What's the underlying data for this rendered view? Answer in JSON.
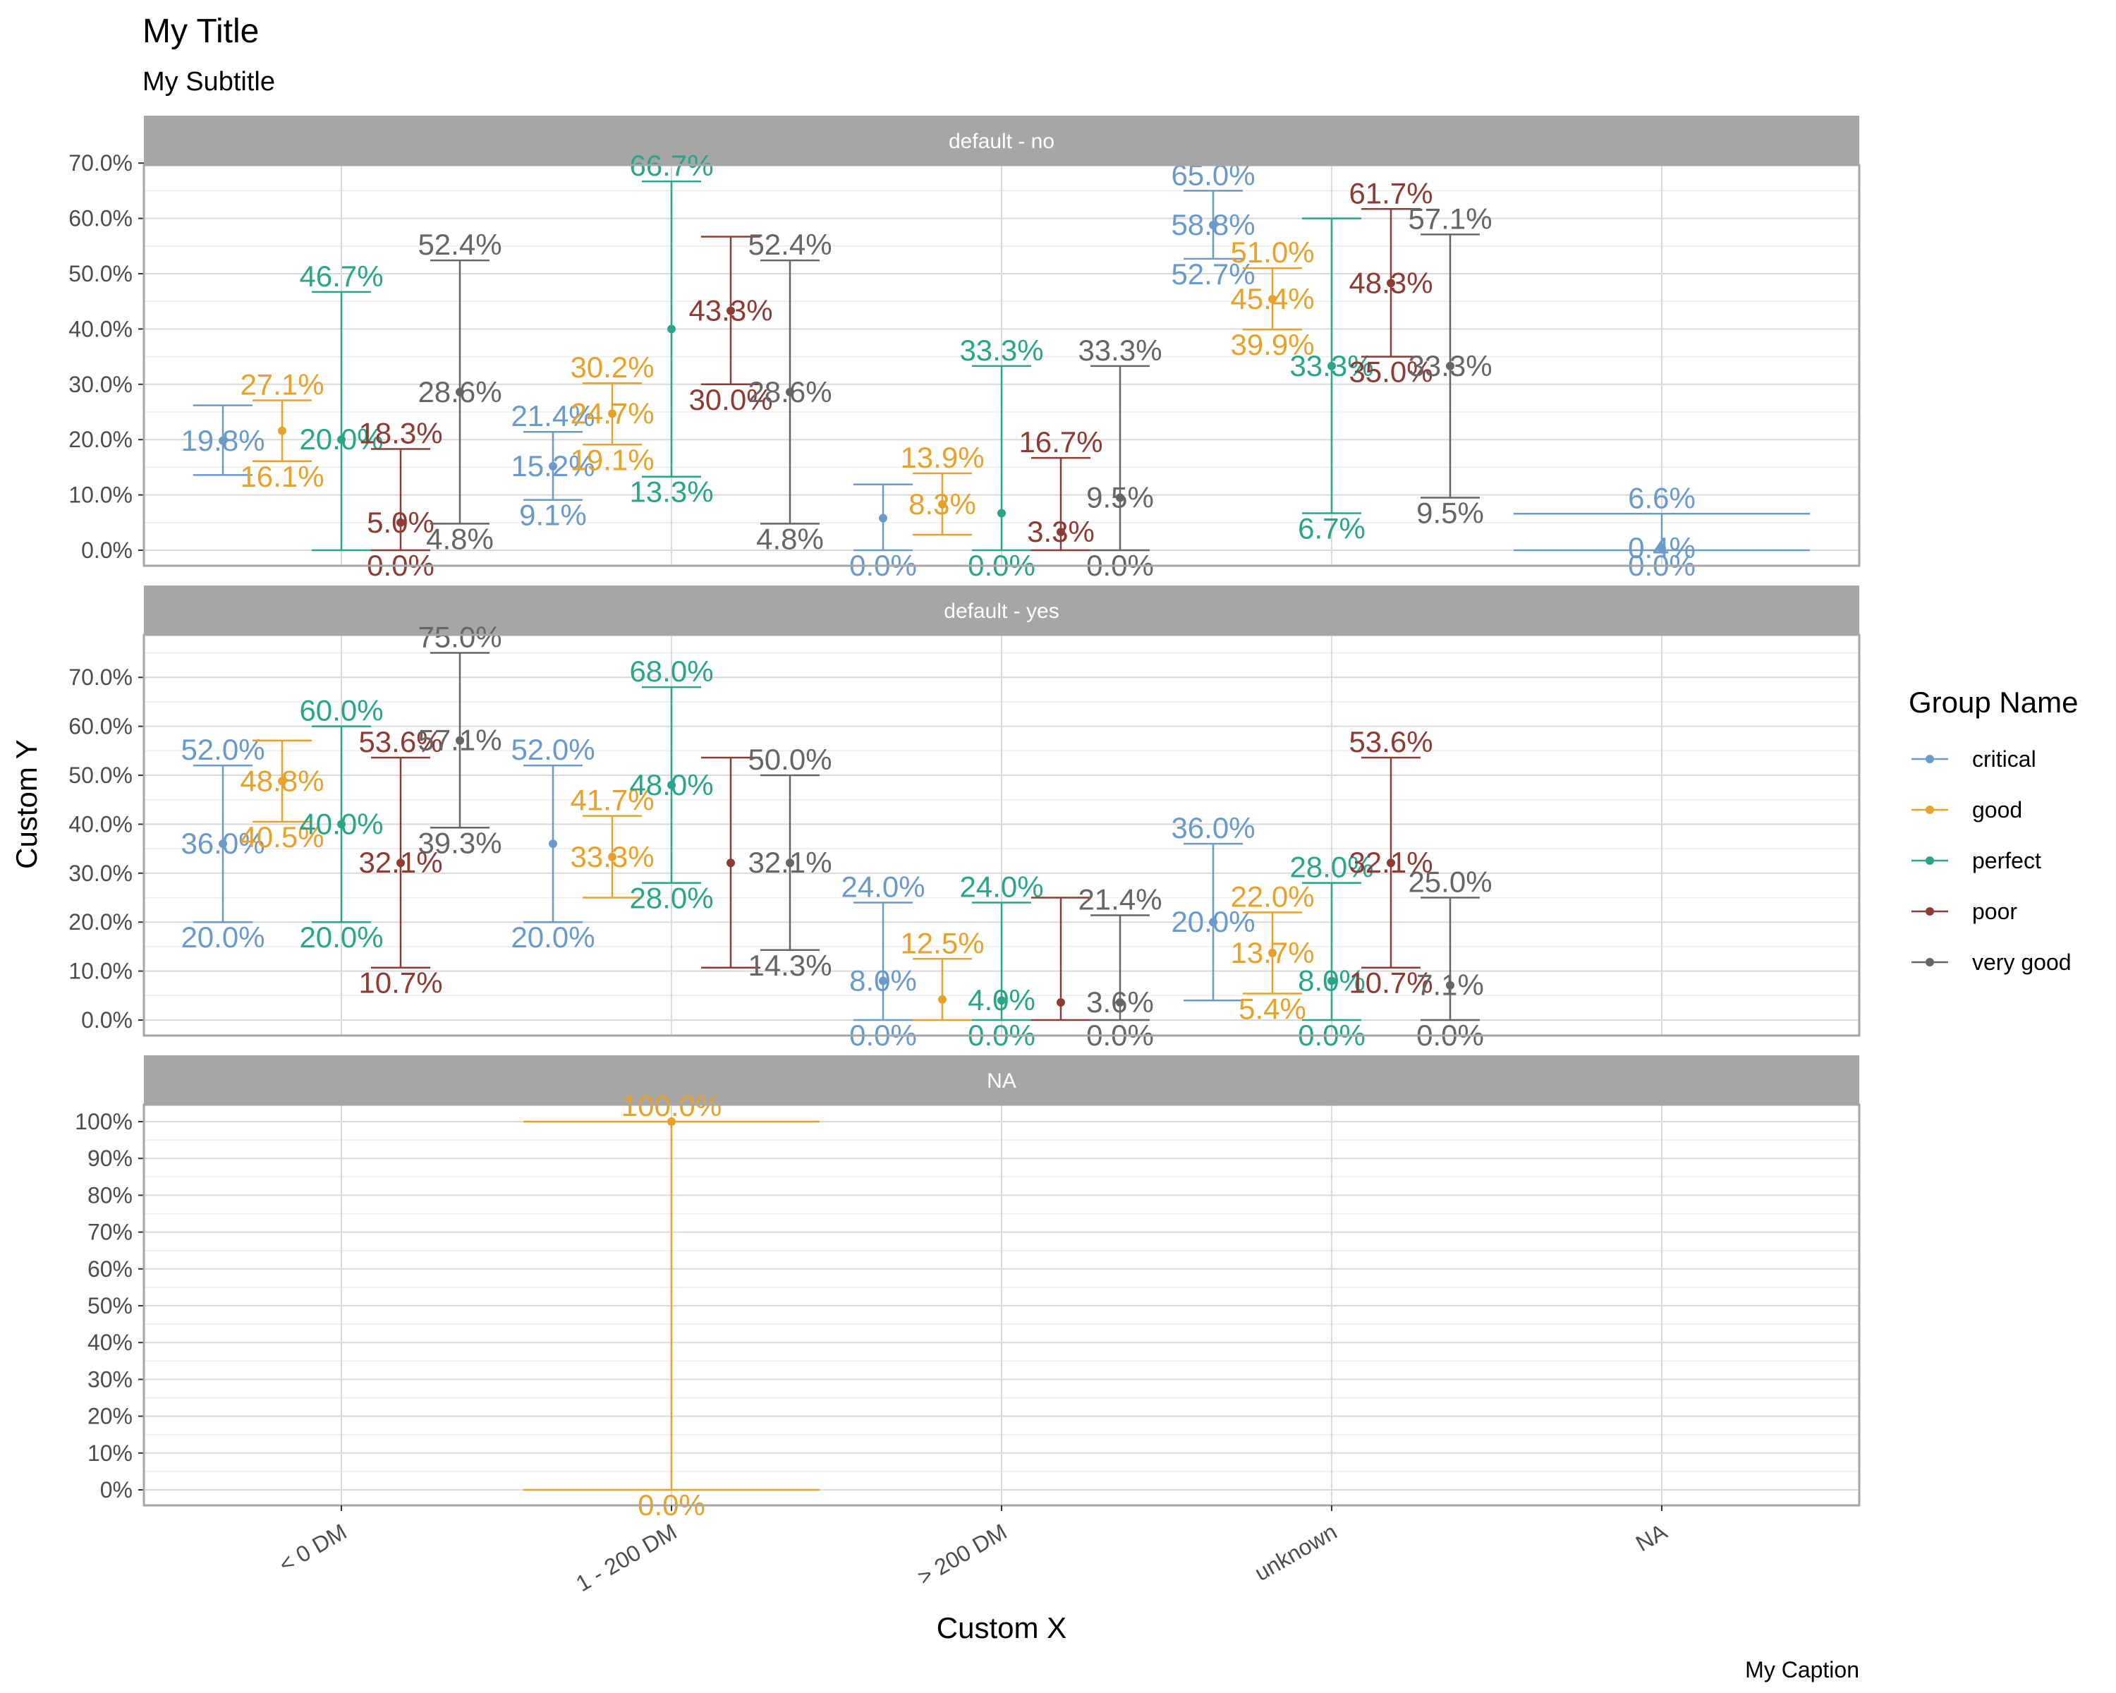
{
  "title": "My Title",
  "subtitle": "My Subtitle",
  "caption": "My Caption",
  "legend_title": "Group Name",
  "chart_data": {
    "type": "errorbar",
    "xlabel": "Custom X",
    "ylabel": "Custom Y",
    "categories": [
      "< 0 DM",
      "1 - 200 DM",
      "> 200 DM",
      "unknown",
      "NA"
    ],
    "legend_placement": "right",
    "grid": true,
    "series_names": [
      "critical",
      "good",
      "perfect",
      "poor",
      "very good"
    ],
    "colors": {
      "critical": "#6A9AC9",
      "good": "#E8A22C",
      "perfect": "#2AA58A",
      "poor": "#8E3B33",
      "very good": "#666666"
    },
    "facets": [
      {
        "name": "default - no",
        "ylim": [
          0,
          70
        ],
        "yticks": [
          "0.0%",
          "10.0%",
          "20.0%",
          "30.0%",
          "40.0%",
          "50.0%",
          "60.0%",
          "70.0%"
        ],
        "points": [
          {
            "category": "< 0 DM",
            "group": "critical",
            "estimate": 19.8,
            "low": 13.6,
            "high": 26.2,
            "labels": [
              "19.8%"
            ]
          },
          {
            "category": "< 0 DM",
            "group": "good",
            "estimate": 21.6,
            "low": 16.1,
            "high": 27.1,
            "labels": [
              "27.1%",
              "16.1%"
            ]
          },
          {
            "category": "< 0 DM",
            "group": "perfect",
            "estimate": 20.0,
            "low": 0.0,
            "high": 46.7,
            "labels": [
              "46.7%",
              "20.0%"
            ]
          },
          {
            "category": "< 0 DM",
            "group": "poor",
            "estimate": 5.0,
            "low": 0.0,
            "high": 18.3,
            "labels": [
              "18.3%",
              "5.0%",
              "0.0%"
            ]
          },
          {
            "category": "< 0 DM",
            "group": "very good",
            "estimate": 28.6,
            "low": 4.8,
            "high": 52.4,
            "labels": [
              "52.4%",
              "28.6%",
              "4.8%"
            ]
          },
          {
            "category": "1 - 200 DM",
            "group": "critical",
            "estimate": 15.2,
            "low": 9.1,
            "high": 21.4,
            "labels": [
              "21.4%",
              "15.2%",
              "9.1%"
            ]
          },
          {
            "category": "1 - 200 DM",
            "group": "good",
            "estimate": 24.7,
            "low": 19.1,
            "high": 30.2,
            "labels": [
              "30.2%",
              "24.7%",
              "19.1%"
            ]
          },
          {
            "category": "1 - 200 DM",
            "group": "perfect",
            "estimate": 40.0,
            "low": 13.3,
            "high": 66.7,
            "labels": [
              "66.7%",
              "13.3%"
            ]
          },
          {
            "category": "1 - 200 DM",
            "group": "poor",
            "estimate": 43.3,
            "low": 30.0,
            "high": 56.7,
            "labels": [
              "43.3%",
              "30.0%"
            ]
          },
          {
            "category": "1 - 200 DM",
            "group": "very good",
            "estimate": 28.6,
            "low": 4.8,
            "high": 52.4,
            "labels": [
              "52.4%",
              "28.6%",
              "4.8%"
            ]
          },
          {
            "category": "> 200 DM",
            "group": "critical",
            "estimate": 5.8,
            "low": 0.0,
            "high": 11.9,
            "labels": [
              "0.0%"
            ]
          },
          {
            "category": "> 200 DM",
            "group": "good",
            "estimate": 8.3,
            "low": 2.8,
            "high": 13.9,
            "labels": [
              "13.9%",
              "8.3%"
            ]
          },
          {
            "category": "> 200 DM",
            "group": "perfect",
            "estimate": 6.7,
            "low": 0.0,
            "high": 33.3,
            "labels": [
              "33.3%",
              "0.0%"
            ]
          },
          {
            "category": "> 200 DM",
            "group": "poor",
            "estimate": 3.3,
            "low": 0.0,
            "high": 16.7,
            "labels": [
              "16.7%",
              "3.3%"
            ]
          },
          {
            "category": "> 200 DM",
            "group": "very good",
            "estimate": 9.5,
            "low": 0.0,
            "high": 33.3,
            "labels": [
              "33.3%",
              "9.5%",
              "0.0%"
            ]
          },
          {
            "category": "unknown",
            "group": "critical",
            "estimate": 58.8,
            "low": 52.7,
            "high": 65.0,
            "labels": [
              "65.0%",
              "58.8%",
              "52.7%"
            ]
          },
          {
            "category": "unknown",
            "group": "good",
            "estimate": 45.4,
            "low": 39.9,
            "high": 51.0,
            "labels": [
              "51.0%",
              "45.4%",
              "39.9%"
            ]
          },
          {
            "category": "unknown",
            "group": "perfect",
            "estimate": 33.3,
            "low": 6.7,
            "high": 60.0,
            "labels": [
              "33.3%",
              "6.7%"
            ]
          },
          {
            "category": "unknown",
            "group": "poor",
            "estimate": 48.3,
            "low": 35.0,
            "high": 61.7,
            "labels": [
              "61.7%",
              "48.3%",
              "35.0%"
            ]
          },
          {
            "category": "unknown",
            "group": "very good",
            "estimate": 33.3,
            "low": 9.5,
            "high": 57.1,
            "labels": [
              "57.1%",
              "33.3%",
              "9.5%"
            ]
          },
          {
            "category": "NA",
            "group": "critical",
            "estimate": 0.4,
            "low": 0.0,
            "high": 6.6,
            "labels": [
              "6.6%",
              "0.4%",
              "0.0%"
            ]
          }
        ]
      },
      {
        "name": "default - yes",
        "ylim": [
          0,
          75
        ],
        "yticks": [
          "0.0%",
          "10.0%",
          "20.0%",
          "30.0%",
          "40.0%",
          "50.0%",
          "60.0%",
          "70.0%"
        ],
        "points": [
          {
            "category": "< 0 DM",
            "group": "critical",
            "estimate": 36.0,
            "low": 20.0,
            "high": 52.0,
            "labels": [
              "52.0%",
              "36.0%",
              "20.0%"
            ]
          },
          {
            "category": "< 0 DM",
            "group": "good",
            "estimate": 48.8,
            "low": 40.5,
            "high": 57.1,
            "labels": [
              "48.8%",
              "40.5%"
            ]
          },
          {
            "category": "< 0 DM",
            "group": "perfect",
            "estimate": 40.0,
            "low": 20.0,
            "high": 60.0,
            "labels": [
              "60.0%",
              "40.0%",
              "20.0%"
            ]
          },
          {
            "category": "< 0 DM",
            "group": "poor",
            "estimate": 32.1,
            "low": 10.7,
            "high": 53.6,
            "labels": [
              "53.6%",
              "32.1%",
              "10.7%"
            ]
          },
          {
            "category": "< 0 DM",
            "group": "very good",
            "estimate": 57.1,
            "low": 39.3,
            "high": 75.0,
            "labels": [
              "75.0%",
              "57.1%",
              "39.3%"
            ]
          },
          {
            "category": "1 - 200 DM",
            "group": "critical",
            "estimate": 36.0,
            "low": 20.0,
            "high": 52.0,
            "labels": [
              "52.0%",
              "20.0%"
            ]
          },
          {
            "category": "1 - 200 DM",
            "group": "good",
            "estimate": 33.3,
            "low": 25.0,
            "high": 41.7,
            "labels": [
              "41.7%",
              "33.3%"
            ]
          },
          {
            "category": "1 - 200 DM",
            "group": "perfect",
            "estimate": 48.0,
            "low": 28.0,
            "high": 68.0,
            "labels": [
              "68.0%",
              "48.0%",
              "28.0%"
            ]
          },
          {
            "category": "1 - 200 DM",
            "group": "poor",
            "estimate": 32.1,
            "low": 10.7,
            "high": 53.6,
            "labels": []
          },
          {
            "category": "1 - 200 DM",
            "group": "very good",
            "estimate": 32.1,
            "low": 14.3,
            "high": 50.0,
            "labels": [
              "50.0%",
              "32.1%",
              "14.3%"
            ]
          },
          {
            "category": "> 200 DM",
            "group": "critical",
            "estimate": 8.0,
            "low": 0.0,
            "high": 24.0,
            "labels": [
              "24.0%",
              "8.0%",
              "0.0%"
            ]
          },
          {
            "category": "> 200 DM",
            "group": "good",
            "estimate": 4.2,
            "low": 0.0,
            "high": 12.5,
            "labels": [
              "12.5%"
            ]
          },
          {
            "category": "> 200 DM",
            "group": "perfect",
            "estimate": 4.0,
            "low": 0.0,
            "high": 24.0,
            "labels": [
              "24.0%",
              "4.0%",
              "0.0%"
            ]
          },
          {
            "category": "> 200 DM",
            "group": "poor",
            "estimate": 3.6,
            "low": 0.0,
            "high": 25.0,
            "labels": []
          },
          {
            "category": "> 200 DM",
            "group": "very good",
            "estimate": 3.6,
            "low": 0.0,
            "high": 21.4,
            "labels": [
              "21.4%",
              "3.6%",
              "0.0%"
            ]
          },
          {
            "category": "unknown",
            "group": "critical",
            "estimate": 20.0,
            "low": 4.0,
            "high": 36.0,
            "labels": [
              "36.0%",
              "20.0%"
            ]
          },
          {
            "category": "unknown",
            "group": "good",
            "estimate": 13.7,
            "low": 5.4,
            "high": 22.0,
            "labels": [
              "22.0%",
              "13.7%",
              "5.4%"
            ]
          },
          {
            "category": "unknown",
            "group": "perfect",
            "estimate": 8.0,
            "low": 0.0,
            "high": 28.0,
            "labels": [
              "28.0%",
              "8.0%",
              "0.0%"
            ]
          },
          {
            "category": "unknown",
            "group": "poor",
            "estimate": 32.1,
            "low": 10.7,
            "high": 53.6,
            "labels": [
              "53.6%",
              "32.1%",
              "10.7%"
            ]
          },
          {
            "category": "unknown",
            "group": "very good",
            "estimate": 7.1,
            "low": 0.0,
            "high": 25.0,
            "labels": [
              "25.0%",
              "7.1%",
              "0.0%"
            ]
          }
        ]
      },
      {
        "name": "NA",
        "ylim": [
          0,
          100
        ],
        "yticks": [
          "0%",
          "10%",
          "20%",
          "30%",
          "40%",
          "50%",
          "60%",
          "70%",
          "80%",
          "90%",
          "100%"
        ],
        "points": [
          {
            "category": "1 - 200 DM",
            "group": "good",
            "estimate": 100.0,
            "low": 0.0,
            "high": 100.0,
            "labels": [
              "100.0%",
              "0.0%"
            ]
          }
        ]
      }
    ]
  }
}
